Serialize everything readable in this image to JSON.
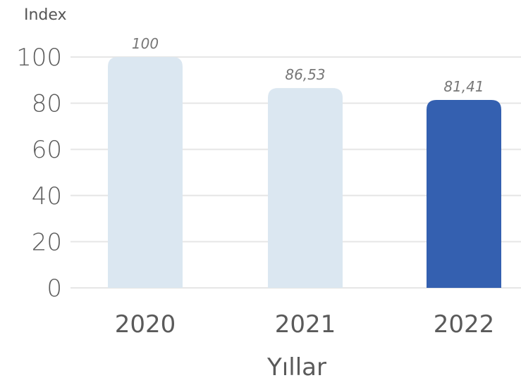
{
  "chart_data": {
    "type": "bar",
    "categories": [
      "2020",
      "2021",
      "2022"
    ],
    "values": [
      100,
      86.53,
      81.41
    ],
    "value_labels": [
      "100",
      "86,53",
      "81,41"
    ],
    "title": "",
    "xlabel": "Yıllar",
    "ylabel": "Index",
    "ylim": [
      0,
      100
    ],
    "yticks": [
      0,
      20,
      40,
      60,
      80,
      100
    ],
    "grid": true,
    "bar_colors": [
      "#dbe7f1",
      "#dbe7f1",
      "#3460b0"
    ]
  }
}
